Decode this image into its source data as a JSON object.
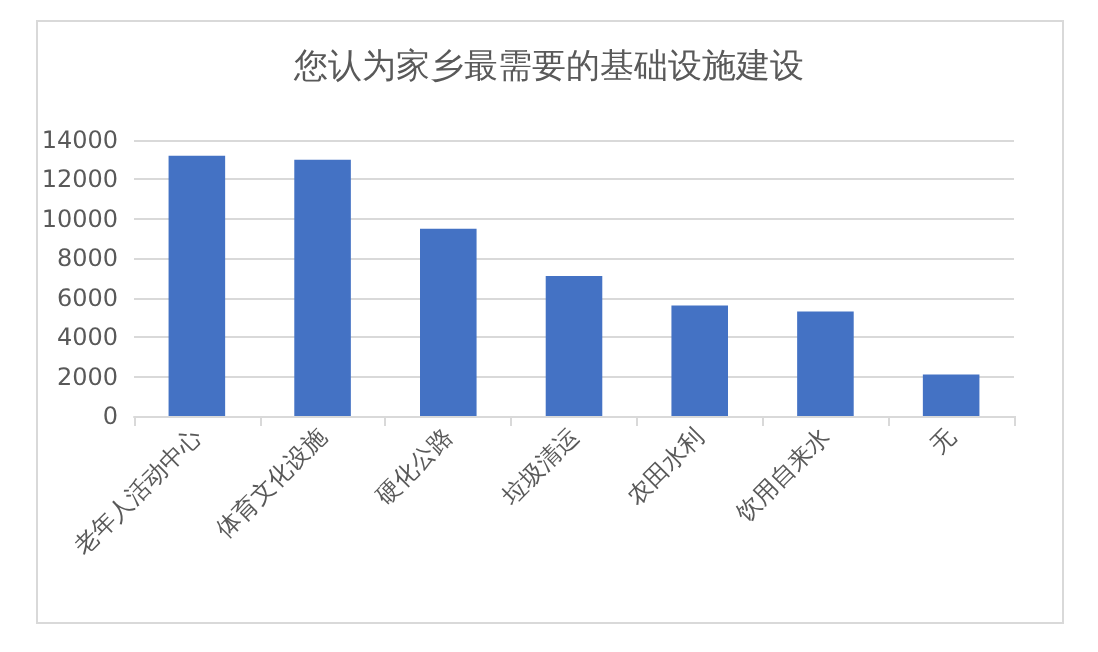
{
  "chart_data": {
    "type": "bar",
    "title": "您认为家乡最需要的基础设施建设",
    "categories": [
      "老年人活动中心",
      "体育文化设施",
      "硬化公路",
      "垃圾清运",
      "农田水利",
      "饮用自来水",
      "无"
    ],
    "values": [
      13200,
      13000,
      9500,
      7100,
      5600,
      5300,
      2100
    ],
    "color": "#4472c4",
    "ylim": [
      0,
      14000
    ],
    "yticks": [
      0,
      2000,
      4000,
      6000,
      8000,
      10000,
      12000,
      14000
    ],
    "grid": "y"
  }
}
